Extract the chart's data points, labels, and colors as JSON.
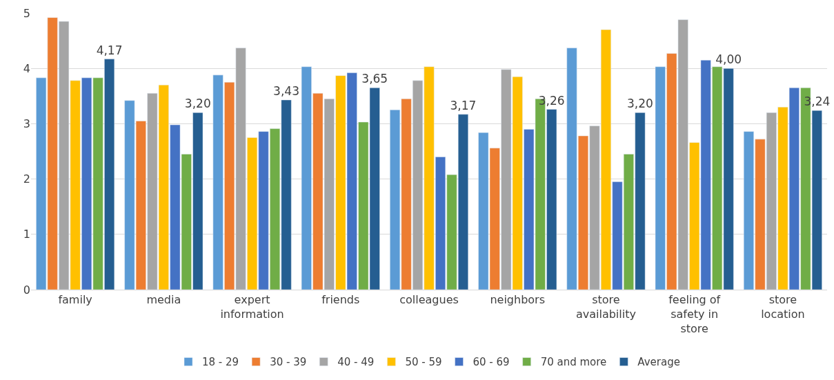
{
  "chart_data": {
    "type": "bar",
    "categories": [
      "family",
      "media",
      "expert information",
      "friends",
      "colleagues",
      "neighbors",
      "store availability",
      "feeling of safety in store",
      "store location"
    ],
    "series": [
      {
        "name": "18 - 29",
        "color": "#5b9bd5",
        "values": [
          3.83,
          3.42,
          3.88,
          4.03,
          3.25,
          2.84,
          4.37,
          4.03,
          2.86
        ]
      },
      {
        "name": "30 - 39",
        "color": "#ed7d31",
        "values": [
          4.92,
          3.05,
          3.75,
          3.55,
          3.45,
          2.56,
          2.78,
          4.27,
          2.72
        ]
      },
      {
        "name": "40 - 49",
        "color": "#a5a5a5",
        "values": [
          4.85,
          3.55,
          4.37,
          3.45,
          3.78,
          3.98,
          2.96,
          4.88,
          3.2
        ]
      },
      {
        "name": "50 - 59",
        "color": "#ffc000",
        "values": [
          3.78,
          3.7,
          2.75,
          3.87,
          4.03,
          3.85,
          4.7,
          2.66,
          3.3
        ]
      },
      {
        "name": "60 - 69",
        "color": "#4472c4",
        "values": [
          3.83,
          2.98,
          2.86,
          3.92,
          2.4,
          2.9,
          1.95,
          4.15,
          3.65
        ]
      },
      {
        "name": "70 and more",
        "color": "#70ad47",
        "values": [
          3.83,
          2.45,
          2.91,
          3.03,
          2.08,
          3.45,
          2.45,
          4.03,
          3.65
        ]
      },
      {
        "name": "Average",
        "color": "#255e91",
        "values": [
          4.17,
          3.2,
          3.43,
          3.65,
          3.17,
          3.26,
          3.2,
          4.0,
          3.24
        ],
        "value_labels": [
          "4,17",
          "3,20",
          "3,43",
          "3,65",
          "3,17",
          "3,26",
          "3,20",
          "4,00",
          "3,24"
        ]
      }
    ],
    "ylim": [
      0,
      5
    ],
    "yticks": [
      0,
      1,
      2,
      3,
      4,
      5
    ],
    "grid": "y",
    "legend": "bottom"
  }
}
